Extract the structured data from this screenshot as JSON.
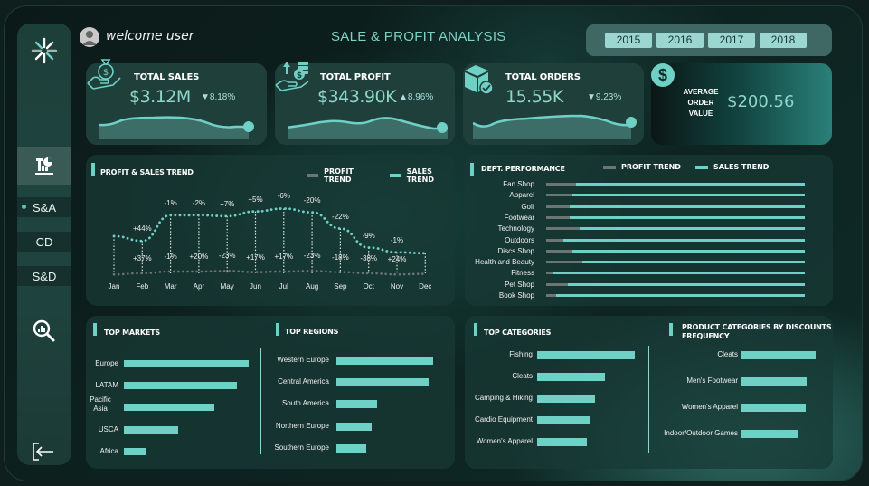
{
  "header": {
    "welcome": "welcome user",
    "title": "SALE & PROFIT ANALYSIS",
    "years": [
      "2015",
      "2016",
      "2017",
      "2018"
    ]
  },
  "sidebar": {
    "items": [
      {
        "label": "S&A",
        "active": true
      },
      {
        "label": "CD",
        "active": false
      },
      {
        "label": "S&D",
        "active": false
      }
    ]
  },
  "kpis": {
    "total_sales": {
      "label": "TOTAL SALES",
      "value": "$3.12M",
      "change": "▼8.18%"
    },
    "total_profit": {
      "label": "TOTAL PROFIT",
      "value": "$343.90K",
      "change": "▲8.96%"
    },
    "total_orders": {
      "label": "TOTAL ORDERS",
      "value": "15.55K",
      "change": "▼9.23%"
    },
    "aov": {
      "label_lines": [
        "AVERAGE",
        "ORDER",
        "VALUE"
      ],
      "value": "$200.56",
      "icon": "$"
    }
  },
  "colors": {
    "accent": "#6fd0c6",
    "profit": "#6b7574",
    "panel": "#1f3f3b",
    "title": "#7fd0c3"
  },
  "trend_panel": {
    "title": "PROFIT & SALES TREND",
    "legend": [
      "PROFIT TREND",
      "SALES TREND"
    ]
  },
  "dept_panel": {
    "title": "DEPT. PERFORMANCE",
    "legend": [
      "PROFIT TREND",
      "SALES TREND"
    ]
  },
  "markets_panel": {
    "title": "TOP MARKETS"
  },
  "regions_panel": {
    "title": "TOP REGIONS"
  },
  "categories_panel": {
    "title": "TOP CATEGORIES"
  },
  "discounts_panel": {
    "title_lines": [
      "PRODUCT CATEGORIES BY DISCOUNTS",
      "FREQUENCY"
    ]
  },
  "chart_data": [
    {
      "type": "line",
      "title": "PROFIT & SALES TREND",
      "categories": [
        "Jan",
        "Feb",
        "Mar",
        "Apr",
        "May",
        "Jun",
        "Jul",
        "Aug",
        "Sep",
        "Oct",
        "Nov",
        "Dec"
      ],
      "series": [
        {
          "name": "SALES TREND",
          "values": [
            62,
            57,
            84,
            84,
            83,
            88,
            91,
            87,
            70,
            50,
            45,
            44
          ],
          "labels": [
            "",
            "+44%",
            "-1%",
            "-2%",
            "+7%",
            "+5%",
            "-6%",
            "-20%",
            "-22%",
            "-9%",
            "-1%",
            ""
          ]
        },
        {
          "name": "PROFIT TREND",
          "values": [
            12,
            14,
            17,
            17,
            18,
            16,
            17,
            18,
            16,
            14,
            12,
            13
          ],
          "labels": [
            "",
            "+37%",
            "-1%",
            "+20%",
            "-23%",
            "+17%",
            "+17%",
            "-23%",
            "-18%",
            "-38%",
            "+24%",
            ""
          ]
        }
      ],
      "grid": false,
      "legend_position": "top-right"
    },
    {
      "type": "bar",
      "title": "DEPT. PERFORMANCE",
      "orientation": "horizontal",
      "categories": [
        "Fan Shop",
        "Apparel",
        "Golf",
        "Footwear",
        "Technology",
        "Outdoors",
        "Discs Shop",
        "Health and Beauty",
        "Fitness",
        "Pet Shop",
        "Book Shop"
      ],
      "series": [
        {
          "name": "PROFIT TREND",
          "values": [
            11.5,
            10,
            9,
            9,
            13,
            6.5,
            10,
            14,
            2.5,
            8.5,
            4
          ]
        },
        {
          "name": "SALES TREND",
          "values": [
            100,
            100,
            100,
            100,
            100,
            100,
            100,
            100,
            100,
            100,
            100
          ]
        }
      ],
      "legend_position": "top"
    },
    {
      "type": "bar",
      "title": "TOP MARKETS",
      "orientation": "horizontal",
      "categories": [
        "Europe",
        "LATAM",
        "Pacific Asia",
        "USCA",
        "Africa"
      ],
      "values": [
        138,
        125,
        100,
        60,
        25
      ]
    },
    {
      "type": "bar",
      "title": "TOP REGIONS",
      "orientation": "horizontal",
      "categories": [
        "Western Europe",
        "Central America",
        "South America",
        "Northern Europe",
        "Southern Europe"
      ],
      "values": [
        107,
        102,
        45,
        39,
        33
      ]
    },
    {
      "type": "bar",
      "title": "TOP CATEGORIES",
      "orientation": "horizontal",
      "categories": [
        "Fishing",
        "Cleats",
        "Camping & Hiking",
        "Cardio Equipment",
        "Women's Apparel"
      ],
      "values": [
        108,
        75,
        64,
        59,
        55
      ]
    },
    {
      "type": "bar",
      "title": "PRODUCT CATEGORIES BY DISCOUNTS FREQUENCY",
      "orientation": "horizontal",
      "categories": [
        "Cleats",
        "Men's Footwear",
        "Women's Apparel",
        "Indoor/Outdoor Games"
      ],
      "values": [
        83,
        73,
        72,
        63
      ]
    }
  ]
}
